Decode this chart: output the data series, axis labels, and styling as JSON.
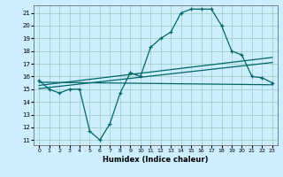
{
  "xlabel": "Humidex (Indice chaleur)",
  "bg_color": "#cceeff",
  "grid_color": "#99ccbb",
  "line_color": "#006666",
  "xlim": [
    -0.5,
    23.5
  ],
  "ylim": [
    10.6,
    21.6
  ],
  "yticks": [
    11,
    12,
    13,
    14,
    15,
    16,
    17,
    18,
    19,
    20,
    21
  ],
  "xticks": [
    0,
    1,
    2,
    3,
    4,
    5,
    6,
    7,
    8,
    9,
    10,
    11,
    12,
    13,
    14,
    15,
    16,
    17,
    18,
    19,
    20,
    21,
    22,
    23
  ],
  "main_x": [
    0,
    1,
    2,
    3,
    4,
    5,
    6,
    7,
    8,
    9,
    10,
    11,
    12,
    13,
    14,
    15,
    16,
    17,
    18,
    19,
    20,
    21,
    22,
    23
  ],
  "main_y": [
    15.7,
    15.0,
    14.7,
    15.0,
    15.0,
    11.7,
    11.0,
    12.3,
    14.7,
    16.3,
    16.0,
    18.3,
    19.0,
    19.5,
    21.0,
    21.3,
    21.3,
    21.3,
    20.0,
    18.0,
    17.7,
    16.0,
    15.9,
    15.5
  ],
  "line1_x": [
    0,
    23
  ],
  "line1_y": [
    15.55,
    15.35
  ],
  "line2_x": [
    0,
    23
  ],
  "line2_y": [
    15.3,
    17.5
  ],
  "line3_x": [
    0,
    23
  ],
  "line3_y": [
    15.05,
    17.1
  ]
}
